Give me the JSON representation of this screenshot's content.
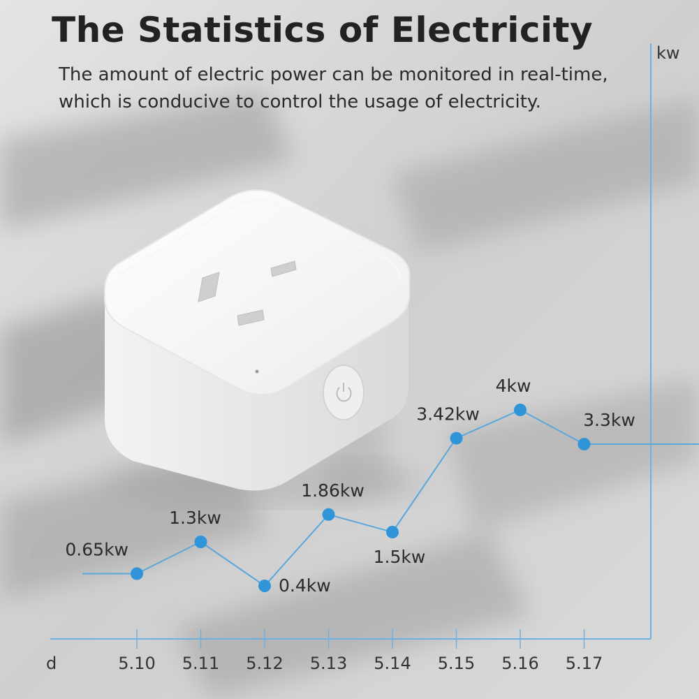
{
  "heading": {
    "title": "The Statistics of Electricity",
    "subtitle": "The amount of electric power can be monitored in real-time, which is conducive to control the usage of electricity."
  },
  "device": {
    "type": "smart plug",
    "power-button-icon": "power-icon"
  },
  "colors": {
    "line": "#5aa7db",
    "point": "#2f95d8",
    "axis": "#6fb0df"
  },
  "chart_data": {
    "type": "line",
    "title": "The Statistics of Electricity",
    "xlabel": "d",
    "ylabel": "kw",
    "categories": [
      "5.10",
      "5.11",
      "5.12",
      "5.13",
      "5.14",
      "5.15",
      "5.16",
      "5.17"
    ],
    "values": [
      0.65,
      1.3,
      0.4,
      1.86,
      1.5,
      3.42,
      4,
      3.3
    ],
    "data_labels": [
      "0.65kw",
      "1.3kw",
      "0.4kw",
      "1.86kw",
      "1.5kw",
      "3.42kw",
      "4kw",
      "3.3kw"
    ],
    "ylim": [
      0,
      5
    ],
    "grid": false
  }
}
